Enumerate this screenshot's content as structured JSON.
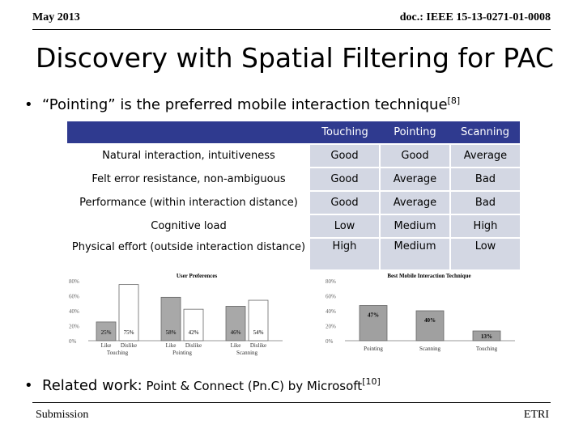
{
  "header": {
    "left": "May 2013",
    "right": "doc.: IEEE 15-13-0271-01-0008"
  },
  "title": "Discovery with Spatial Filtering for PAC",
  "bullet1": {
    "text": "“Pointing” is the preferred mobile interaction technique",
    "ref": "[8]"
  },
  "table": {
    "columns": [
      "Touching",
      "Pointing",
      "Scanning"
    ],
    "rows": [
      {
        "label": "Natural interaction, intuitiveness",
        "values": [
          "Good",
          "Good",
          "Average"
        ]
      },
      {
        "label": "Felt error resistance, non-ambiguous",
        "values": [
          "Good",
          "Average",
          "Bad"
        ]
      },
      {
        "label": "Performance (within interaction distance)",
        "values": [
          "Good",
          "Average",
          "Bad"
        ]
      },
      {
        "label": "Cognitive load",
        "values": [
          "Low",
          "Medium",
          "High"
        ]
      },
      {
        "label": "Physical effort (outside interaction distance)",
        "values": [
          "High",
          "Medium",
          "Low"
        ]
      }
    ]
  },
  "chart_data": [
    {
      "type": "bar",
      "title": "User Preferences",
      "groups": [
        "Touching",
        "Pointing",
        "Scanning"
      ],
      "categories": [
        "Like",
        "Dislike"
      ],
      "yticks": [
        "0%",
        "20%",
        "40%",
        "60%",
        "80%"
      ],
      "ylim": [
        0,
        80
      ],
      "bars": [
        {
          "group": "Touching",
          "category": "Like",
          "value": 25,
          "label": "25%"
        },
        {
          "group": "Touching",
          "category": "Dislike",
          "value": 75,
          "label": "75%"
        },
        {
          "group": "Pointing",
          "category": "Like",
          "value": 58,
          "label": "58%"
        },
        {
          "group": "Pointing",
          "category": "Dislike",
          "value": 42,
          "label": "42%"
        },
        {
          "group": "Scanning",
          "category": "Like",
          "value": 46,
          "label": "46%"
        },
        {
          "group": "Scanning",
          "category": "Dislike",
          "value": 54,
          "label": "54%"
        }
      ],
      "colors": {
        "Like": "#a8a8a8",
        "Dislike": "#ffffff"
      }
    },
    {
      "type": "bar",
      "title": "Best Mobile Interaction Technique",
      "categories": [
        "Pointing",
        "Scanning",
        "Touching"
      ],
      "values": [
        47,
        40,
        13
      ],
      "labels": [
        "47%",
        "40%",
        "13%"
      ],
      "yticks": [
        "0%",
        "20%",
        "40%",
        "60%",
        "80%"
      ],
      "ylim": [
        0,
        80
      ],
      "colors": [
        "#a0a0a0",
        "#a0a0a0",
        "#a0a0a0"
      ]
    }
  ],
  "bullet2": {
    "prefix": "Related work:",
    "text": " Point & Connect (Pn.C) by Microsoft",
    "ref": "[10]"
  },
  "footer": {
    "left": "Submission",
    "right": "ETRI"
  }
}
